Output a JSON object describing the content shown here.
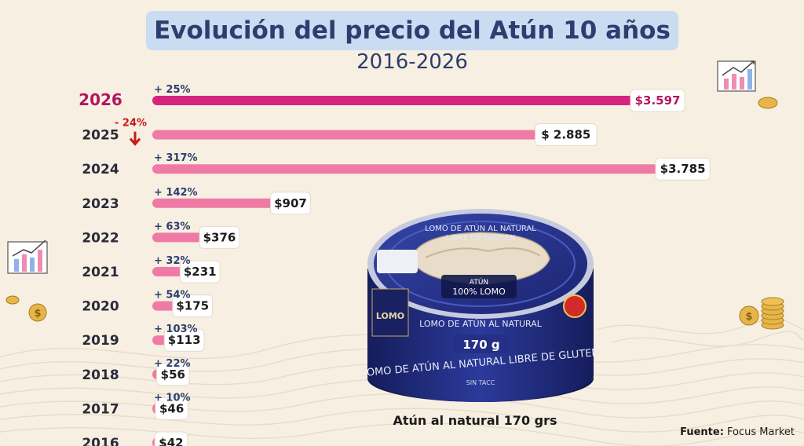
{
  "title": "Evolución del precio del Atún 10 años",
  "subtitle": "2016-2026",
  "caption": "Atún al natural 170 grs",
  "source": {
    "label": "Fuente:",
    "value": "Focus Market"
  },
  "colors": {
    "highlight": "#d6247f",
    "bar": "#f07aa6",
    "title_bg": "#c9dcf2",
    "title_text": "#2b3e6e",
    "drop": "#c81919"
  },
  "can": {
    "lid_text_1": "LOMO DE ATÚN AL NATURAL",
    "lid_text_2": "LIBRE DE GLUTEN",
    "badge_1": "ATÚN",
    "badge_2": "100% LOMO",
    "brand": "LOMO",
    "band_text_1": "LOMO DE ATÚN AL NATURAL",
    "weight": "170 g",
    "band_text_2": "LOMO DE ATÚN AL NATURAL LIBRE DE GLUTEN",
    "band_text_3": "SIN TACC"
  },
  "chart_data": {
    "type": "bar",
    "orientation": "horizontal",
    "title": "Evolución del precio del Atún 10 años",
    "subtitle": "2016-2026",
    "categories": [
      "2026",
      "2025",
      "2024",
      "2023",
      "2022",
      "2021",
      "2020",
      "2019",
      "2018",
      "2017",
      "2016"
    ],
    "values": [
      3597,
      2885,
      3785,
      907,
      376,
      231,
      175,
      113,
      56,
      46,
      42
    ],
    "value_labels": [
      "$3.597",
      "$ 2.885",
      "$3.785",
      "$907",
      "$376",
      "$231",
      "$175",
      "$113",
      "$56",
      "$46",
      "$42"
    ],
    "change_labels": [
      "+ 25%",
      "- 24%",
      "+ 317%",
      "+ 142%",
      "+ 63%",
      "+ 32%",
      "+ 54%",
      "+ 103%",
      "+ 22%",
      "+ 10%",
      ""
    ],
    "highlight": "2026",
    "xlim": [
      0,
      3785
    ],
    "grid": false
  }
}
